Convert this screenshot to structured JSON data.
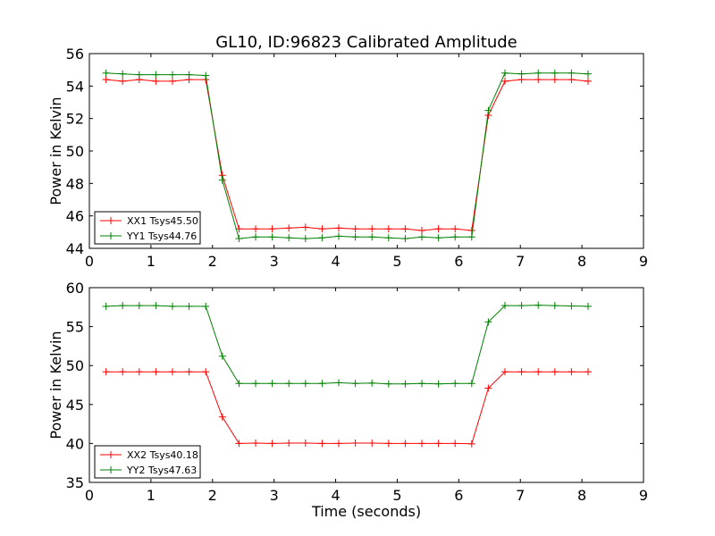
{
  "figure": {
    "title": "GL10, ID:96823 Calibrated Amplitude"
  },
  "chart_data": [
    {
      "type": "line",
      "xlabel": "",
      "ylabel": "Power in Kelvin",
      "xlim": [
        0,
        9
      ],
      "ylim": [
        44,
        56
      ],
      "xticks": [
        0,
        1,
        2,
        3,
        4,
        5,
        6,
        7,
        8,
        9
      ],
      "yticks": [
        44,
        46,
        48,
        50,
        52,
        54,
        56
      ],
      "legend_position": "lower-left",
      "grid": false,
      "series": [
        {
          "name": "XX1 Tsys45.50",
          "color": "#ff0000",
          "marker": "+",
          "x": [
            0.27,
            0.54,
            0.81,
            1.08,
            1.35,
            1.62,
            1.89,
            2.16,
            2.43,
            2.7,
            2.97,
            3.24,
            3.51,
            3.78,
            4.05,
            4.32,
            4.59,
            4.86,
            5.13,
            5.4,
            5.67,
            5.94,
            6.21,
            6.48,
            6.75,
            7.02,
            7.29,
            7.56,
            7.83,
            8.1
          ],
          "y": [
            54.4,
            54.3,
            54.4,
            54.3,
            54.3,
            54.4,
            54.4,
            48.5,
            45.2,
            45.2,
            45.2,
            45.25,
            45.3,
            45.2,
            45.25,
            45.2,
            45.2,
            45.2,
            45.2,
            45.1,
            45.2,
            45.2,
            45.1,
            52.2,
            54.3,
            54.4,
            54.4,
            54.4,
            54.4,
            54.3
          ]
        },
        {
          "name": "YY1 Tsys44.76",
          "color": "#008000",
          "marker": "+",
          "x": [
            0.27,
            0.54,
            0.81,
            1.08,
            1.35,
            1.62,
            1.89,
            2.16,
            2.43,
            2.7,
            2.97,
            3.24,
            3.51,
            3.78,
            4.05,
            4.32,
            4.59,
            4.86,
            5.13,
            5.4,
            5.67,
            5.94,
            6.21,
            6.48,
            6.75,
            7.02,
            7.29,
            7.56,
            7.83,
            8.1
          ],
          "y": [
            54.8,
            54.75,
            54.7,
            54.7,
            54.7,
            54.7,
            54.65,
            48.2,
            44.6,
            44.7,
            44.7,
            44.65,
            44.6,
            44.65,
            44.75,
            44.7,
            44.7,
            44.65,
            44.6,
            44.7,
            44.65,
            44.7,
            44.7,
            52.5,
            54.8,
            54.75,
            54.8,
            54.8,
            54.8,
            54.75
          ]
        }
      ]
    },
    {
      "type": "line",
      "xlabel": "Time (seconds)",
      "ylabel": "Power in Kelvin",
      "xlim": [
        0,
        9
      ],
      "ylim": [
        35,
        60
      ],
      "xticks": [
        0,
        1,
        2,
        3,
        4,
        5,
        6,
        7,
        8,
        9
      ],
      "yticks": [
        35,
        40,
        45,
        50,
        55,
        60
      ],
      "legend_position": "lower-left",
      "grid": false,
      "series": [
        {
          "name": "XX2 Tsys40.18",
          "color": "#ff0000",
          "marker": "+",
          "x": [
            0.27,
            0.54,
            0.81,
            1.08,
            1.35,
            1.62,
            1.89,
            2.16,
            2.43,
            2.7,
            2.97,
            3.24,
            3.51,
            3.78,
            4.05,
            4.32,
            4.59,
            4.86,
            5.13,
            5.4,
            5.67,
            5.94,
            6.21,
            6.48,
            6.75,
            7.02,
            7.29,
            7.56,
            7.83,
            8.1
          ],
          "y": [
            49.2,
            49.2,
            49.2,
            49.2,
            49.2,
            49.2,
            49.2,
            43.4,
            40.0,
            40.05,
            40.0,
            40.05,
            40.05,
            40.0,
            40.0,
            40.05,
            40.05,
            40.0,
            40.0,
            40.0,
            40.0,
            40.0,
            39.95,
            47.1,
            49.2,
            49.2,
            49.2,
            49.2,
            49.2,
            49.2
          ]
        },
        {
          "name": "YY2 Tsys47.63",
          "color": "#008000",
          "marker": "+",
          "x": [
            0.27,
            0.54,
            0.81,
            1.08,
            1.35,
            1.62,
            1.89,
            2.16,
            2.43,
            2.7,
            2.97,
            3.24,
            3.51,
            3.78,
            4.05,
            4.32,
            4.59,
            4.86,
            5.13,
            5.4,
            5.67,
            5.94,
            6.21,
            6.48,
            6.75,
            7.02,
            7.29,
            7.56,
            7.83,
            8.1
          ],
          "y": [
            57.6,
            57.7,
            57.7,
            57.7,
            57.6,
            57.6,
            57.6,
            51.2,
            47.7,
            47.7,
            47.7,
            47.7,
            47.7,
            47.7,
            47.8,
            47.7,
            47.75,
            47.65,
            47.65,
            47.7,
            47.65,
            47.7,
            47.7,
            55.6,
            57.7,
            57.7,
            57.75,
            57.7,
            57.65,
            57.6
          ]
        }
      ]
    }
  ]
}
